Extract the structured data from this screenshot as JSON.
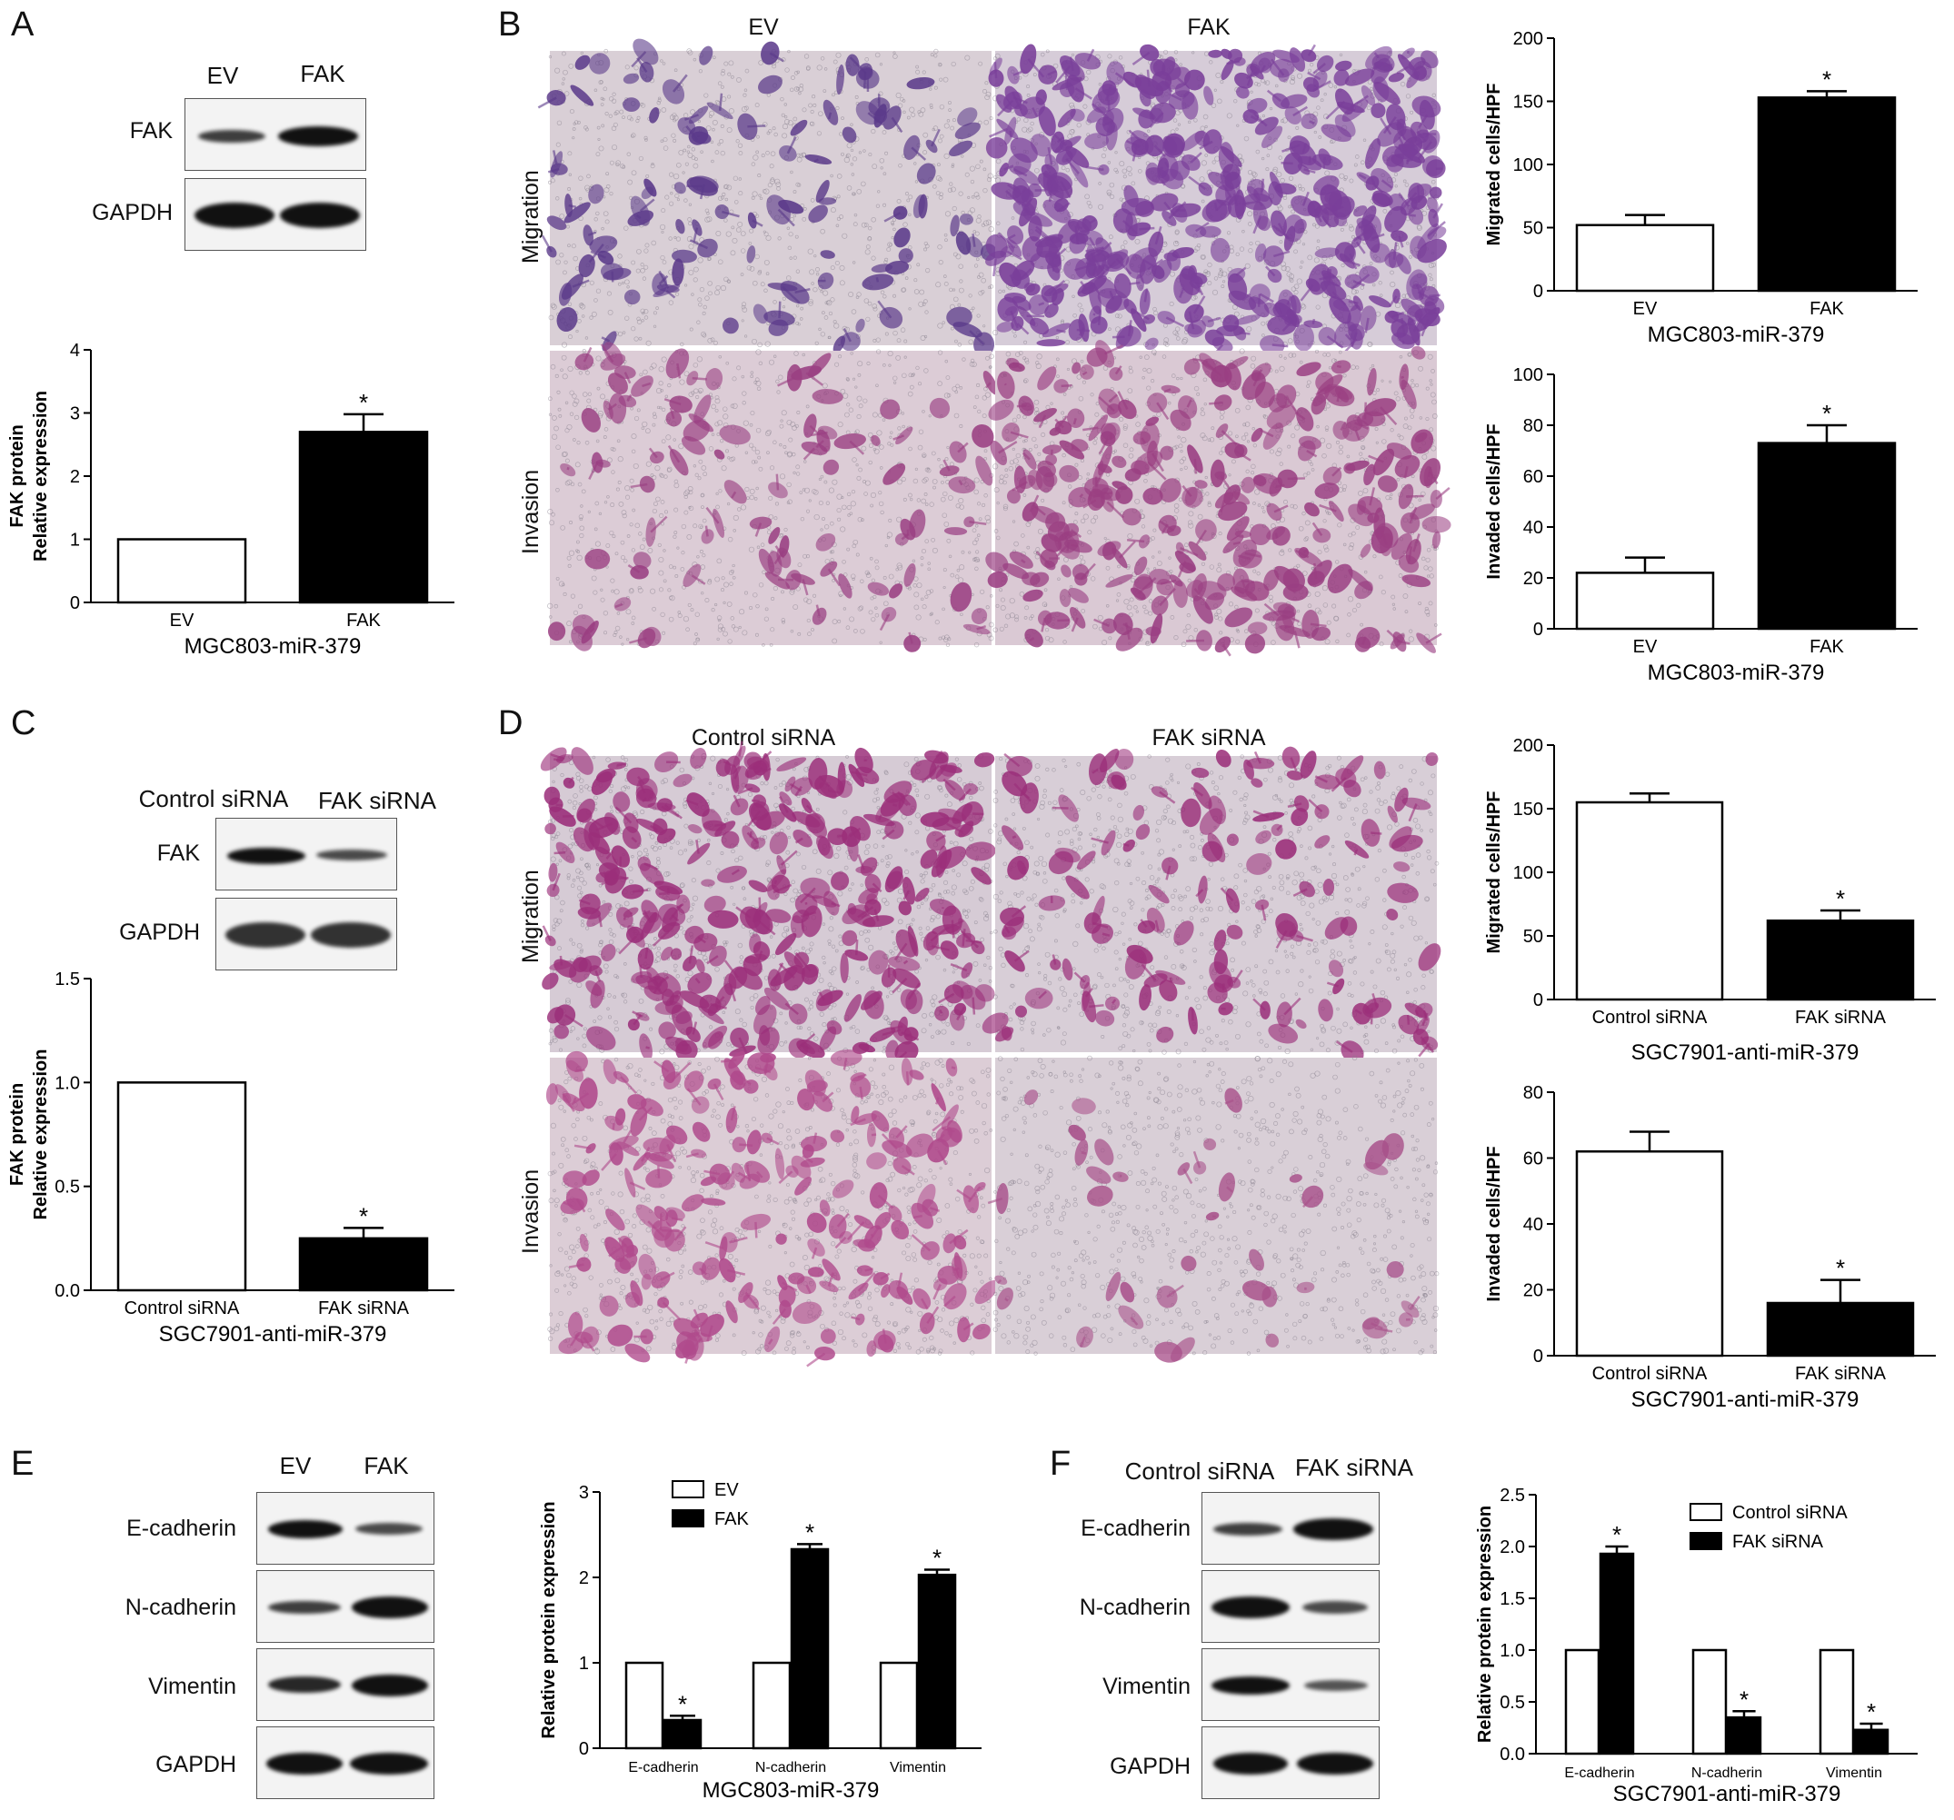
{
  "panels": {
    "A": {
      "label": "A",
      "lanes": [
        "EV",
        "FAK"
      ],
      "proteins": [
        "FAK",
        "GAPDH"
      ]
    },
    "B": {
      "label": "B",
      "columns": [
        "EV",
        "FAK"
      ],
      "rows": [
        "Migration",
        "Invasion"
      ]
    },
    "C": {
      "label": "C",
      "lanes": [
        "Control siRNA",
        "FAK siRNA"
      ],
      "proteins": [
        "FAK",
        "GAPDH"
      ]
    },
    "D": {
      "label": "D",
      "columns": [
        "Control siRNA",
        "FAK siRNA"
      ],
      "rows": [
        "Migration",
        "Invasion"
      ]
    },
    "E": {
      "label": "E",
      "lanes": [
        "EV",
        "FAK"
      ],
      "proteins": [
        "E-cadherin",
        "N-cadherin",
        "Vimentin",
        "GAPDH"
      ]
    },
    "F": {
      "label": "F",
      "lanes": [
        "Control siRNA",
        "FAK siRNA"
      ],
      "proteins": [
        "E-cadherin",
        "N-cadherin",
        "Vimentin",
        "GAPDH"
      ]
    }
  },
  "colors": {
    "open_bar": "#ffffff",
    "filled_bar": "#000000",
    "migration_stain": "#7a3f9a",
    "invasion_stain": "#9a3f82",
    "dsirna_stain": "#9b2f7a"
  },
  "chart_data": [
    {
      "id": "A-bar",
      "type": "bar",
      "categories": [
        "EV",
        "FAK"
      ],
      "values": [
        1.0,
        2.7
      ],
      "errors": [
        0,
        0.28
      ],
      "xlabel": "MGC803-miR-379",
      "ylabel": [
        "FAK protein",
        "Relative expression"
      ],
      "ylim": [
        0,
        4
      ],
      "yticks": [
        "0",
        "1",
        "2",
        "3",
        "4"
      ],
      "significance": [
        "",
        "*"
      ]
    },
    {
      "id": "B-migration",
      "type": "bar",
      "categories": [
        "EV",
        "FAK"
      ],
      "values": [
        52,
        153
      ],
      "errors": [
        8,
        5
      ],
      "xlabel": "MGC803-miR-379",
      "ylabel": [
        "Migrated cells/HPF"
      ],
      "ylim": [
        0,
        200
      ],
      "yticks": [
        "0",
        "50",
        "100",
        "150",
        "200"
      ],
      "significance": [
        "",
        "*"
      ]
    },
    {
      "id": "B-invasion",
      "type": "bar",
      "categories": [
        "EV",
        "FAK"
      ],
      "values": [
        22,
        73
      ],
      "errors": [
        6,
        7
      ],
      "xlabel": "MGC803-miR-379",
      "ylabel": [
        "Invaded cells/HPF"
      ],
      "ylim": [
        0,
        100
      ],
      "yticks": [
        "0",
        "20",
        "40",
        "60",
        "80",
        "100"
      ],
      "significance": [
        "",
        "*"
      ]
    },
    {
      "id": "C-bar",
      "type": "bar",
      "categories": [
        "Control siRNA",
        "FAK siRNA"
      ],
      "values": [
        1.0,
        0.25
      ],
      "errors": [
        0,
        0.05
      ],
      "xlabel": "SGC7901-anti-miR-379",
      "ylabel": [
        "FAK protein",
        "Relative expression"
      ],
      "ylim": [
        0,
        1.5
      ],
      "yticks": [
        "0.0",
        "0.5",
        "1.0",
        "1.5"
      ],
      "significance": [
        "",
        "*"
      ]
    },
    {
      "id": "D-migration",
      "type": "bar",
      "categories": [
        "Control siRNA",
        "FAK siRNA"
      ],
      "values": [
        155,
        62
      ],
      "errors": [
        7,
        8
      ],
      "xlabel": "SGC7901-anti-miR-379",
      "ylabel": [
        "Migrated cells/HPF"
      ],
      "ylim": [
        0,
        200
      ],
      "yticks": [
        "0",
        "50",
        "100",
        "150",
        "200"
      ],
      "significance": [
        "",
        "*"
      ]
    },
    {
      "id": "D-invasion",
      "type": "bar",
      "categories": [
        "Control siRNA",
        "FAK siRNA"
      ],
      "values": [
        62,
        16
      ],
      "errors": [
        6,
        7
      ],
      "xlabel": "SGC7901-anti-miR-379",
      "ylabel": [
        "Invaded cells/HPF"
      ],
      "ylim": [
        0,
        80
      ],
      "yticks": [
        "0",
        "20",
        "40",
        "60",
        "80"
      ],
      "significance": [
        "",
        "*"
      ]
    },
    {
      "id": "E-bar",
      "type": "bar",
      "categories": [
        "E-cadherin",
        "N-cadherin",
        "Vimentin"
      ],
      "series": [
        {
          "name": "EV",
          "values": [
            1.0,
            1.0,
            1.0
          ],
          "errors": [
            0,
            0,
            0
          ]
        },
        {
          "name": "FAK",
          "values": [
            0.33,
            2.33,
            2.03
          ],
          "errors": [
            0.05,
            0.06,
            0.06
          ]
        }
      ],
      "xlabel": "MGC803-miR-379",
      "ylabel": [
        "Relative protein expression"
      ],
      "ylim": [
        0,
        3
      ],
      "yticks": [
        "0",
        "1",
        "2",
        "3"
      ],
      "legend": "top-left",
      "significance": [
        "*",
        "*",
        "*"
      ]
    },
    {
      "id": "F-bar",
      "type": "bar",
      "categories": [
        "E-cadherin",
        "N-cadherin",
        "Vimentin"
      ],
      "series": [
        {
          "name": "Control siRNA",
          "values": [
            1.0,
            1.0,
            1.0
          ],
          "errors": [
            0,
            0,
            0
          ]
        },
        {
          "name": "FAK siRNA",
          "values": [
            1.93,
            0.35,
            0.23
          ],
          "errors": [
            0.07,
            0.06,
            0.06
          ]
        }
      ],
      "xlabel": "SGC7901-anti-miR-379",
      "ylabel": [
        "Relative protein expression"
      ],
      "ylim": [
        0,
        2.5
      ],
      "yticks": [
        "0.0",
        "0.5",
        "1.0",
        "1.5",
        "2.0",
        "2.5"
      ],
      "legend": "top-right",
      "significance": [
        "*",
        "*",
        "*"
      ]
    }
  ]
}
